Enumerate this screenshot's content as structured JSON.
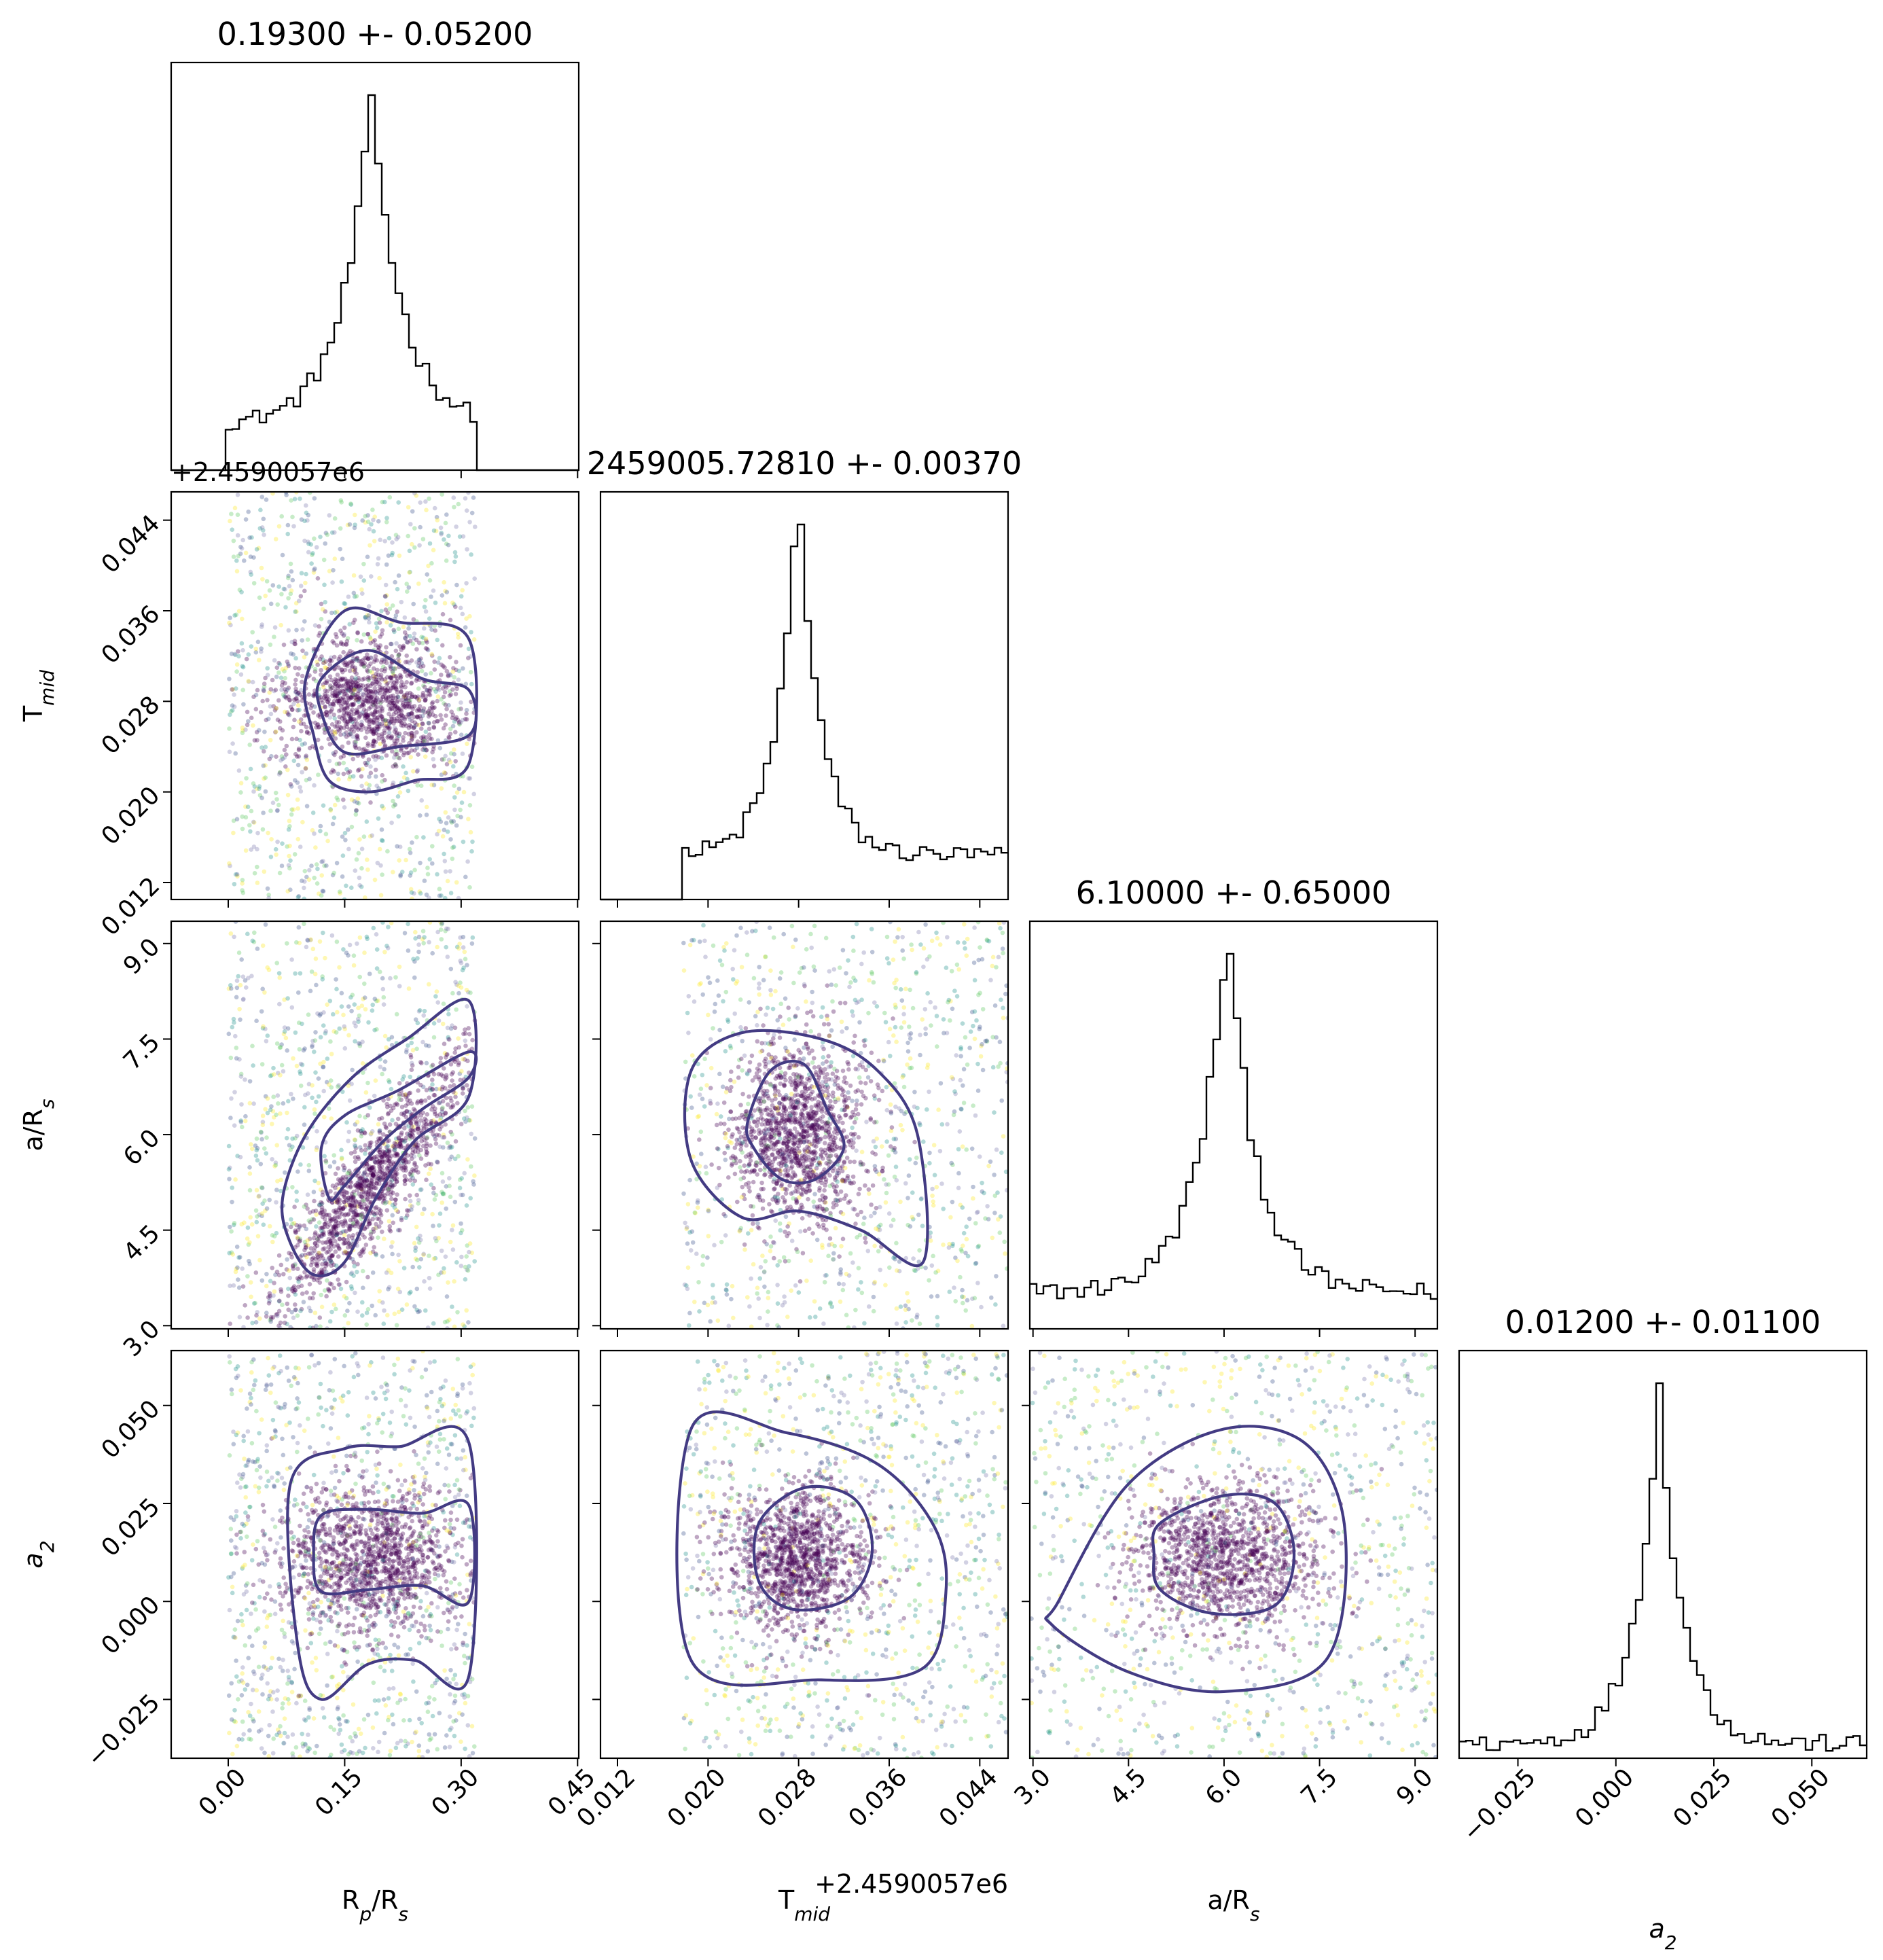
{
  "chart_data": {
    "type": "corner",
    "parameters": [
      {
        "key": "rp",
        "label": "R<sub>p</sub>/R<sub>s</sub>",
        "xlim": [
          -0.0735,
          0.4515
        ],
        "hist_peak": 0.185,
        "hist_width": 0.05,
        "hist_support": [
          0.0,
          0.318
        ],
        "hist_flat": 0.14
      },
      {
        "key": "tmid",
        "label": "T<sub>mid</sub>",
        "offset_label": "+2.4590057e6",
        "xlim": [
          0.0105,
          0.0465
        ],
        "hist_peak": 0.028,
        "hist_width": 0.0025,
        "hist_support": [
          0.0178,
          0.0465
        ],
        "hist_flat": 0.12
      },
      {
        "key": "ars",
        "label": "a/R<sub>s</sub>",
        "xlim": [
          2.95,
          9.35
        ],
        "hist_peak": 6.05,
        "hist_width": 0.6,
        "hist_support": [
          2.95,
          9.35
        ],
        "hist_flat": 0.1
      },
      {
        "key": "a2",
        "label": "<i>a</i><sub>2</sub>",
        "xlim": [
          -0.04,
          0.064
        ],
        "hist_peak": 0.011,
        "hist_width": 0.008,
        "hist_support": [
          -0.04,
          0.064
        ],
        "hist_flat": 0.04
      }
    ],
    "titles": [
      "0.19300 +- 0.05200",
      "2459005.72810 +- 0.00370",
      "6.10000 +- 0.65000",
      "0.01200 +- 0.01100"
    ],
    "ticks": {
      "rp": [
        0.0,
        0.15,
        0.3,
        0.45
      ],
      "tmid": [
        0.012,
        0.02,
        0.028,
        0.036,
        0.044
      ],
      "ars": [
        3.0,
        4.5,
        6.0,
        7.5,
        9.0
      ],
      "a2": [
        -0.025,
        0.0,
        0.025,
        0.05
      ]
    },
    "tick_labels": {
      "rp": [
        "0.00",
        "0.15",
        "0.30",
        "0.45"
      ],
      "tmid": [
        "0.012",
        "0.020",
        "0.028",
        "0.036",
        "0.044"
      ],
      "ars": [
        "3.0",
        "4.5",
        "6.0",
        "7.5",
        "9.0"
      ],
      "a2": [
        "−0.025",
        "0.000",
        "0.025",
        "0.050"
      ]
    },
    "contours": [
      {
        "row": 1,
        "col": 0,
        "inner": [
          [
            0.12,
            0.03
          ],
          [
            0.18,
            0.0325
          ],
          [
            0.25,
            0.03
          ],
          [
            0.31,
            0.029
          ],
          [
            0.31,
            0.025
          ],
          [
            0.22,
            0.024
          ],
          [
            0.15,
            0.0235
          ],
          [
            0.12,
            0.027
          ]
        ],
        "outer": [
          [
            0.1,
            0.03
          ],
          [
            0.15,
            0.036
          ],
          [
            0.22,
            0.035
          ],
          [
            0.31,
            0.0335
          ],
          [
            0.31,
            0.0225
          ],
          [
            0.24,
            0.021
          ],
          [
            0.18,
            0.02
          ],
          [
            0.13,
            0.021
          ],
          [
            0.11,
            0.025
          ]
        ]
      },
      {
        "row": 2,
        "col": 0,
        "inner": [
          [
            0.13,
            5.0
          ],
          [
            0.12,
            5.8
          ],
          [
            0.15,
            6.3
          ],
          [
            0.22,
            6.7
          ],
          [
            0.31,
            7.3
          ],
          [
            0.31,
            6.9
          ],
          [
            0.25,
            6.4
          ],
          [
            0.2,
            5.9
          ],
          [
            0.15,
            5.2
          ]
        ],
        "outer": [
          [
            0.07,
            5.0
          ],
          [
            0.1,
            6.0
          ],
          [
            0.16,
            6.9
          ],
          [
            0.23,
            7.5
          ],
          [
            0.31,
            8.1
          ],
          [
            0.31,
            6.6
          ],
          [
            0.24,
            5.9
          ],
          [
            0.19,
            5.0
          ],
          [
            0.15,
            4.0
          ],
          [
            0.11,
            3.8
          ],
          [
            0.08,
            4.3
          ]
        ]
      },
      {
        "row": 2,
        "col": 1,
        "inner": [
          [
            0.0235,
            6.2
          ],
          [
            0.0255,
            7.0
          ],
          [
            0.0285,
            7.1
          ],
          [
            0.0305,
            6.4
          ],
          [
            0.032,
            5.8
          ],
          [
            0.0295,
            5.3
          ],
          [
            0.0265,
            5.3
          ],
          [
            0.024,
            5.8
          ]
        ],
        "outer": [
          [
            0.0185,
            7.0
          ],
          [
            0.023,
            7.6
          ],
          [
            0.03,
            7.5
          ],
          [
            0.035,
            7.0
          ],
          [
            0.0385,
            6.0
          ],
          [
            0.039,
            4.0
          ],
          [
            0.0335,
            4.5
          ],
          [
            0.028,
            4.8
          ],
          [
            0.023,
            4.7
          ],
          [
            0.0185,
            5.6
          ]
        ]
      },
      {
        "row": 3,
        "col": 0,
        "inner": [
          [
            0.12,
            0.022
          ],
          [
            0.18,
            0.0235
          ],
          [
            0.25,
            0.0225
          ],
          [
            0.31,
            0.0245
          ],
          [
            0.31,
            0.0
          ],
          [
            0.25,
            0.004
          ],
          [
            0.18,
            0.003
          ],
          [
            0.12,
            0.0025
          ],
          [
            0.11,
            0.012
          ]
        ],
        "outer": [
          [
            0.08,
            0.03
          ],
          [
            0.15,
            0.039
          ],
          [
            0.22,
            0.0395
          ],
          [
            0.31,
            0.0405
          ],
          [
            0.31,
            -0.019
          ],
          [
            0.24,
            -0.015
          ],
          [
            0.18,
            -0.016
          ],
          [
            0.12,
            -0.025
          ],
          [
            0.09,
            -0.012
          ]
        ]
      },
      {
        "row": 3,
        "col": 1,
        "inner": [
          [
            0.0245,
            0.02
          ],
          [
            0.0285,
            0.029
          ],
          [
            0.033,
            0.026
          ],
          [
            0.0345,
            0.013
          ],
          [
            0.0325,
            0.001
          ],
          [
            0.0275,
            -0.002
          ],
          [
            0.0245,
            0.005
          ]
        ],
        "outer": [
          [
            0.0185,
            0.044
          ],
          [
            0.027,
            0.043
          ],
          [
            0.035,
            0.035
          ],
          [
            0.04,
            0.019
          ],
          [
            0.041,
            0.002
          ],
          [
            0.039,
            -0.017
          ],
          [
            0.03,
            -0.02
          ],
          [
            0.0185,
            -0.015
          ]
        ]
      },
      {
        "row": 3,
        "col": 2,
        "inner": [
          [
            5.0,
            0.02
          ],
          [
            6.0,
            0.027
          ],
          [
            6.8,
            0.025
          ],
          [
            7.1,
            0.012
          ],
          [
            6.8,
            -0.001
          ],
          [
            5.8,
            -0.003
          ],
          [
            5.0,
            0.003
          ],
          [
            4.9,
            0.012
          ]
        ],
        "outer": [
          [
            3.4,
            0.0
          ],
          [
            4.5,
            0.03
          ],
          [
            6.0,
            0.044
          ],
          [
            7.3,
            0.04
          ],
          [
            7.9,
            0.018
          ],
          [
            7.6,
            -0.015
          ],
          [
            6.0,
            -0.023
          ],
          [
            4.5,
            -0.018
          ],
          [
            3.3,
            -0.006
          ]
        ]
      }
    ],
    "scatter_points_per_panel": 2200,
    "colors": {
      "hist": "#000000",
      "contour": "#433b83",
      "dense": "#440154",
      "sparse": [
        "#3b528b",
        "#21918c",
        "#5ec962",
        "#fde725",
        "#7e7ab0"
      ]
    }
  }
}
